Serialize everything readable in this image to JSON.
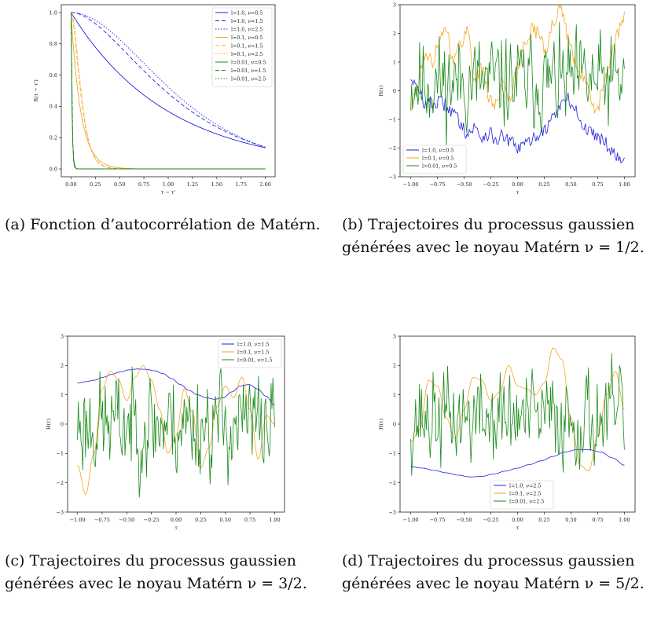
{
  "captions": [
    "(a) Fonction d’autocorrélation de Matérn.",
    "(b) Trajectoires du processus gaussien générées avec le noyau Matérn ν = 1/2.",
    "(c) Trajectoires du processus gaussien générées avec le noyau Matérn ν = 3/2.",
    "(d) Trajectoires du processus gaussien générées avec le noyau Matérn ν = 5/2."
  ],
  "colors": {
    "blue": "#1f1fdd",
    "orange": "#f5a623",
    "green": "#1a8a1a"
  },
  "chart_data": [
    {
      "type": "line",
      "xlabel": "τ − τ'",
      "ylabel": "R(τ − τ')",
      "xlim": [
        -0.1,
        2.1
      ],
      "ylim": [
        -0.05,
        1.05
      ],
      "xticks": [
        "0.00",
        "0.25",
        "0.50",
        "0.75",
        "1.00",
        "1.25",
        "1.50",
        "1.75",
        "2.00"
      ],
      "yticks": [
        "0.0",
        "0.2",
        "0.4",
        "0.6",
        "0.8",
        "1.0"
      ],
      "legend_position": "top-right",
      "x_range": [
        0,
        2
      ],
      "series": [
        {
          "name": "l=1.0, ν=0.5",
          "l": 1.0,
          "nu": 0.5,
          "color": "blue",
          "dash": "solid"
        },
        {
          "name": "l=1.0, ν=1.5",
          "l": 1.0,
          "nu": 1.5,
          "color": "blue",
          "dash": "dashed"
        },
        {
          "name": "l=1.0, ν=2.5",
          "l": 1.0,
          "nu": 2.5,
          "color": "blue",
          "dash": "dotted"
        },
        {
          "name": "l=0.1, ν=0.5",
          "l": 0.1,
          "nu": 0.5,
          "color": "orange",
          "dash": "solid"
        },
        {
          "name": "l=0.1, ν=1.5",
          "l": 0.1,
          "nu": 1.5,
          "color": "orange",
          "dash": "dashed"
        },
        {
          "name": "l=0.1, ν=2.5",
          "l": 0.1,
          "nu": 2.5,
          "color": "orange",
          "dash": "dotted"
        },
        {
          "name": "l=0.01, ν=0.5",
          "l": 0.01,
          "nu": 0.5,
          "color": "green",
          "dash": "solid"
        },
        {
          "name": "l=0.01, ν=1.5",
          "l": 0.01,
          "nu": 1.5,
          "color": "green",
          "dash": "dashed"
        },
        {
          "name": "l=0.01, ν=2.5",
          "l": 0.01,
          "nu": 2.5,
          "color": "green",
          "dash": "dotted"
        }
      ]
    },
    {
      "type": "line",
      "xlabel": "τ",
      "ylabel": "H(τ)",
      "xlim": [
        -1.1,
        1.1
      ],
      "ylim": [
        -3,
        3
      ],
      "xticks": [
        "−1.00",
        "−0.75",
        "−0.50",
        "−0.25",
        "0.00",
        "0.25",
        "0.50",
        "0.75",
        "1.00"
      ],
      "yticks": [
        "−3",
        "−2",
        "−1",
        "0",
        "1",
        "2",
        "3"
      ],
      "legend_position": "bottom-left",
      "x_range": [
        -1,
        1
      ],
      "series": [
        {
          "name": "l=1.0, ν=0.5",
          "color": "blue",
          "values": [
            0.5,
            0.0,
            -0.4,
            -0.45,
            -0.4,
            -0.5,
            -0.8,
            -1.1,
            -1.5,
            -1.3,
            -1.6,
            -1.5,
            -1.7,
            -1.6,
            -1.8,
            -2.0,
            -1.9,
            -1.7,
            -1.5,
            -1.3,
            -0.9,
            -0.5,
            -0.3,
            -0.6,
            -1.2,
            -1.4,
            -1.5,
            -1.7,
            -2.0,
            -2.3,
            -2.3
          ]
        },
        {
          "name": "l=0.1, ν=0.5",
          "color": "orange",
          "values": [
            -0.6,
            0.2,
            1.3,
            1.0,
            1.8,
            2.2,
            1.0,
            1.7,
            2.1,
            0.4,
            0.8,
            -0.2,
            -0.5,
            0.4,
            -0.3,
            0.8,
            1.7,
            2.2,
            2.0,
            1.3,
            2.4,
            2.9,
            2.0,
            1.1,
            0.6,
            0.0,
            -0.8,
            0.0,
            1.0,
            2.0,
            2.6
          ]
        },
        {
          "name": "l=0.01, ν=0.5",
          "color": "green",
          "seed": 11,
          "mean": 0.3,
          "amp": 1.1,
          "points": 240
        }
      ]
    },
    {
      "type": "line",
      "xlabel": "τ",
      "ylabel": "H(τ)",
      "xlim": [
        -1.1,
        1.1
      ],
      "ylim": [
        -3,
        3
      ],
      "xticks": [
        "−1.00",
        "−0.75",
        "−0.50",
        "−0.25",
        "0.00",
        "0.25",
        "0.50",
        "0.75",
        "1.00"
      ],
      "yticks": [
        "−3",
        "−2",
        "−1",
        "0",
        "1",
        "2",
        "3"
      ],
      "legend_position": "top-right",
      "x_range": [
        -1,
        1
      ],
      "series": [
        {
          "name": "l=1.0, ν=1.5",
          "color": "blue",
          "values": [
            1.4,
            1.45,
            1.5,
            1.6,
            1.7,
            1.78,
            1.85,
            1.88,
            1.87,
            1.82,
            1.72,
            1.55,
            1.35,
            1.15,
            1.0,
            0.9,
            0.85,
            0.9,
            1.1,
            1.3,
            1.35,
            1.2,
            0.95,
            0.65
          ]
        },
        {
          "name": "l=0.1, ν=1.5",
          "color": "orange",
          "values": [
            -1.4,
            -2.4,
            -1.0,
            1.2,
            1.8,
            1.5,
            0.8,
            1.6,
            2.0,
            1.5,
            0.5,
            -1.0,
            -0.4,
            1.2,
            0.4,
            -1.5,
            -0.8,
            0.6,
            1.3,
            0.9,
            1.6,
            0.5,
            -1.2,
            0.3,
            0.0
          ]
        },
        {
          "name": "l=0.01, ν=1.5",
          "color": "green",
          "seed": 23,
          "mean": 0.0,
          "amp": 1.2,
          "points": 220
        }
      ]
    },
    {
      "type": "line",
      "xlabel": "τ",
      "ylabel": "H(τ)",
      "xlim": [
        -1.1,
        1.1
      ],
      "ylim": [
        -3,
        3
      ],
      "xticks": [
        "−1.00",
        "−0.75",
        "−0.50",
        "−0.25",
        "0.00",
        "0.25",
        "0.50",
        "0.75",
        "1.00"
      ],
      "yticks": [
        "−3",
        "−2",
        "−1",
        "0",
        "1",
        "2",
        "3"
      ],
      "legend_position": "bottom-right",
      "x_range": [
        -1,
        1
      ],
      "series": [
        {
          "name": "l=1.0, ν=2.5",
          "color": "blue",
          "values": [
            -1.45,
            -1.5,
            -1.58,
            -1.66,
            -1.74,
            -1.8,
            -1.78,
            -1.7,
            -1.6,
            -1.5,
            -1.38,
            -1.25,
            -1.1,
            -0.95,
            -0.87,
            -0.87,
            -0.95,
            -1.15,
            -1.4
          ]
        },
        {
          "name": "l=0.1, ν=2.5",
          "color": "orange",
          "values": [
            -0.6,
            -0.2,
            1.5,
            1.3,
            0.2,
            -0.5,
            0.5,
            1.6,
            1.5,
            0.8,
            1.1,
            2.0,
            1.3,
            1.2,
            1.0,
            1.4,
            2.6,
            2.2,
            0.2,
            -1.4,
            -1.6,
            -0.4,
            1.0,
            1.8,
            0.5
          ]
        },
        {
          "name": "l=0.01, ν=2.5",
          "color": "green",
          "seed": 37,
          "mean": 0.2,
          "amp": 1.1,
          "points": 220
        }
      ]
    }
  ]
}
